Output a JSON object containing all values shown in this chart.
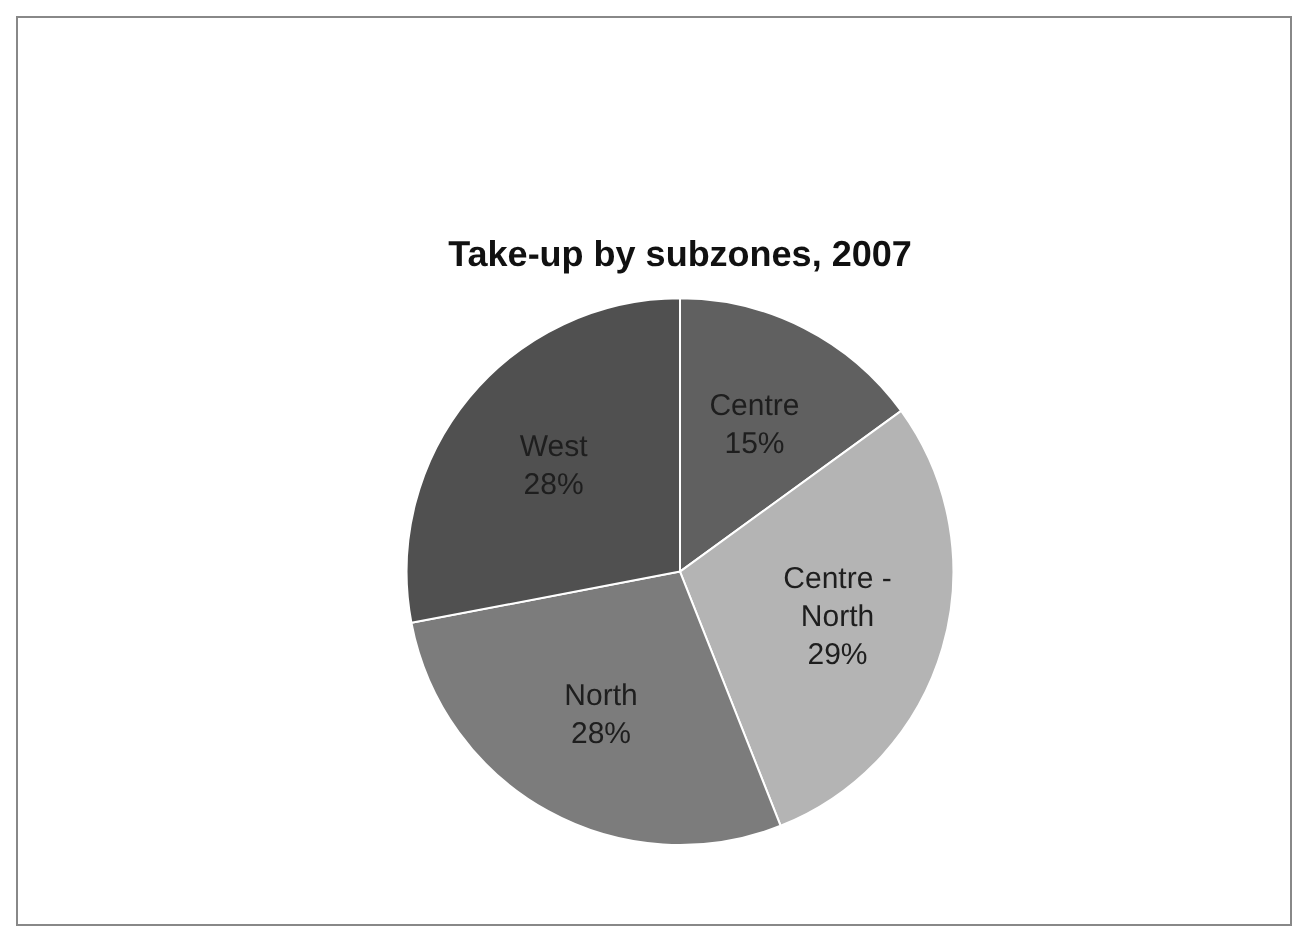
{
  "chart_data": {
    "type": "pie",
    "title": "Take-up by subzones, 2007",
    "categories": [
      "Centre",
      "Centre - North",
      "North",
      "West"
    ],
    "values": [
      15,
      29,
      28,
      28
    ],
    "colors": [
      "#606060",
      "#b4b4b4",
      "#7c7c7c",
      "#505050"
    ],
    "value_labels": [
      "15%",
      "29%",
      "28%",
      "28%"
    ],
    "legend": false
  }
}
